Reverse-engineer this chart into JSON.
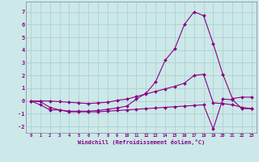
{
  "xlabel": "Windchill (Refroidissement éolien,°C)",
  "background_color": "#cce8e8",
  "grid_color": "#aacccc",
  "line_color": "#880088",
  "xlim": [
    -0.5,
    23.5
  ],
  "ylim": [
    -2.5,
    7.8
  ],
  "xticks": [
    0,
    1,
    2,
    3,
    4,
    5,
    6,
    7,
    8,
    9,
    10,
    11,
    12,
    13,
    14,
    15,
    16,
    17,
    18,
    19,
    20,
    21,
    22,
    23
  ],
  "yticks": [
    -2,
    -1,
    0,
    1,
    2,
    3,
    4,
    5,
    6,
    7
  ],
  "line1_x": [
    0,
    1,
    2,
    3,
    4,
    5,
    6,
    7,
    8,
    9,
    10,
    11,
    12,
    13,
    14,
    15,
    16,
    17,
    18,
    19,
    20,
    21,
    22,
    23
  ],
  "line1_y": [
    0.0,
    -0.3,
    -0.7,
    -0.7,
    -0.8,
    -0.8,
    -0.8,
    -0.75,
    -0.65,
    -0.55,
    -0.4,
    0.15,
    0.6,
    1.5,
    3.2,
    4.1,
    6.0,
    7.0,
    6.7,
    4.5,
    2.1,
    0.2,
    0.3,
    0.3
  ],
  "line2_x": [
    0,
    1,
    2,
    3,
    4,
    5,
    6,
    7,
    8,
    9,
    10,
    11,
    12,
    13,
    14,
    15,
    16,
    17,
    18,
    19,
    20,
    21,
    22,
    23
  ],
  "line2_y": [
    0.0,
    0.0,
    0.0,
    -0.05,
    -0.1,
    -0.15,
    -0.2,
    -0.15,
    -0.1,
    0.05,
    0.15,
    0.35,
    0.55,
    0.75,
    0.95,
    1.15,
    1.4,
    2.0,
    2.1,
    -0.15,
    -0.2,
    -0.3,
    -0.5,
    -0.6
  ],
  "line3_x": [
    0,
    1,
    2,
    3,
    4,
    5,
    6,
    7,
    8,
    9,
    10,
    11,
    12,
    13,
    14,
    15,
    16,
    17,
    18,
    19,
    20,
    21,
    22,
    23
  ],
  "line3_y": [
    0.0,
    -0.05,
    -0.5,
    -0.7,
    -0.85,
    -0.85,
    -0.85,
    -0.85,
    -0.8,
    -0.75,
    -0.7,
    -0.65,
    -0.6,
    -0.55,
    -0.5,
    -0.45,
    -0.4,
    -0.35,
    -0.3,
    -2.2,
    0.15,
    0.1,
    -0.6,
    -0.6
  ]
}
